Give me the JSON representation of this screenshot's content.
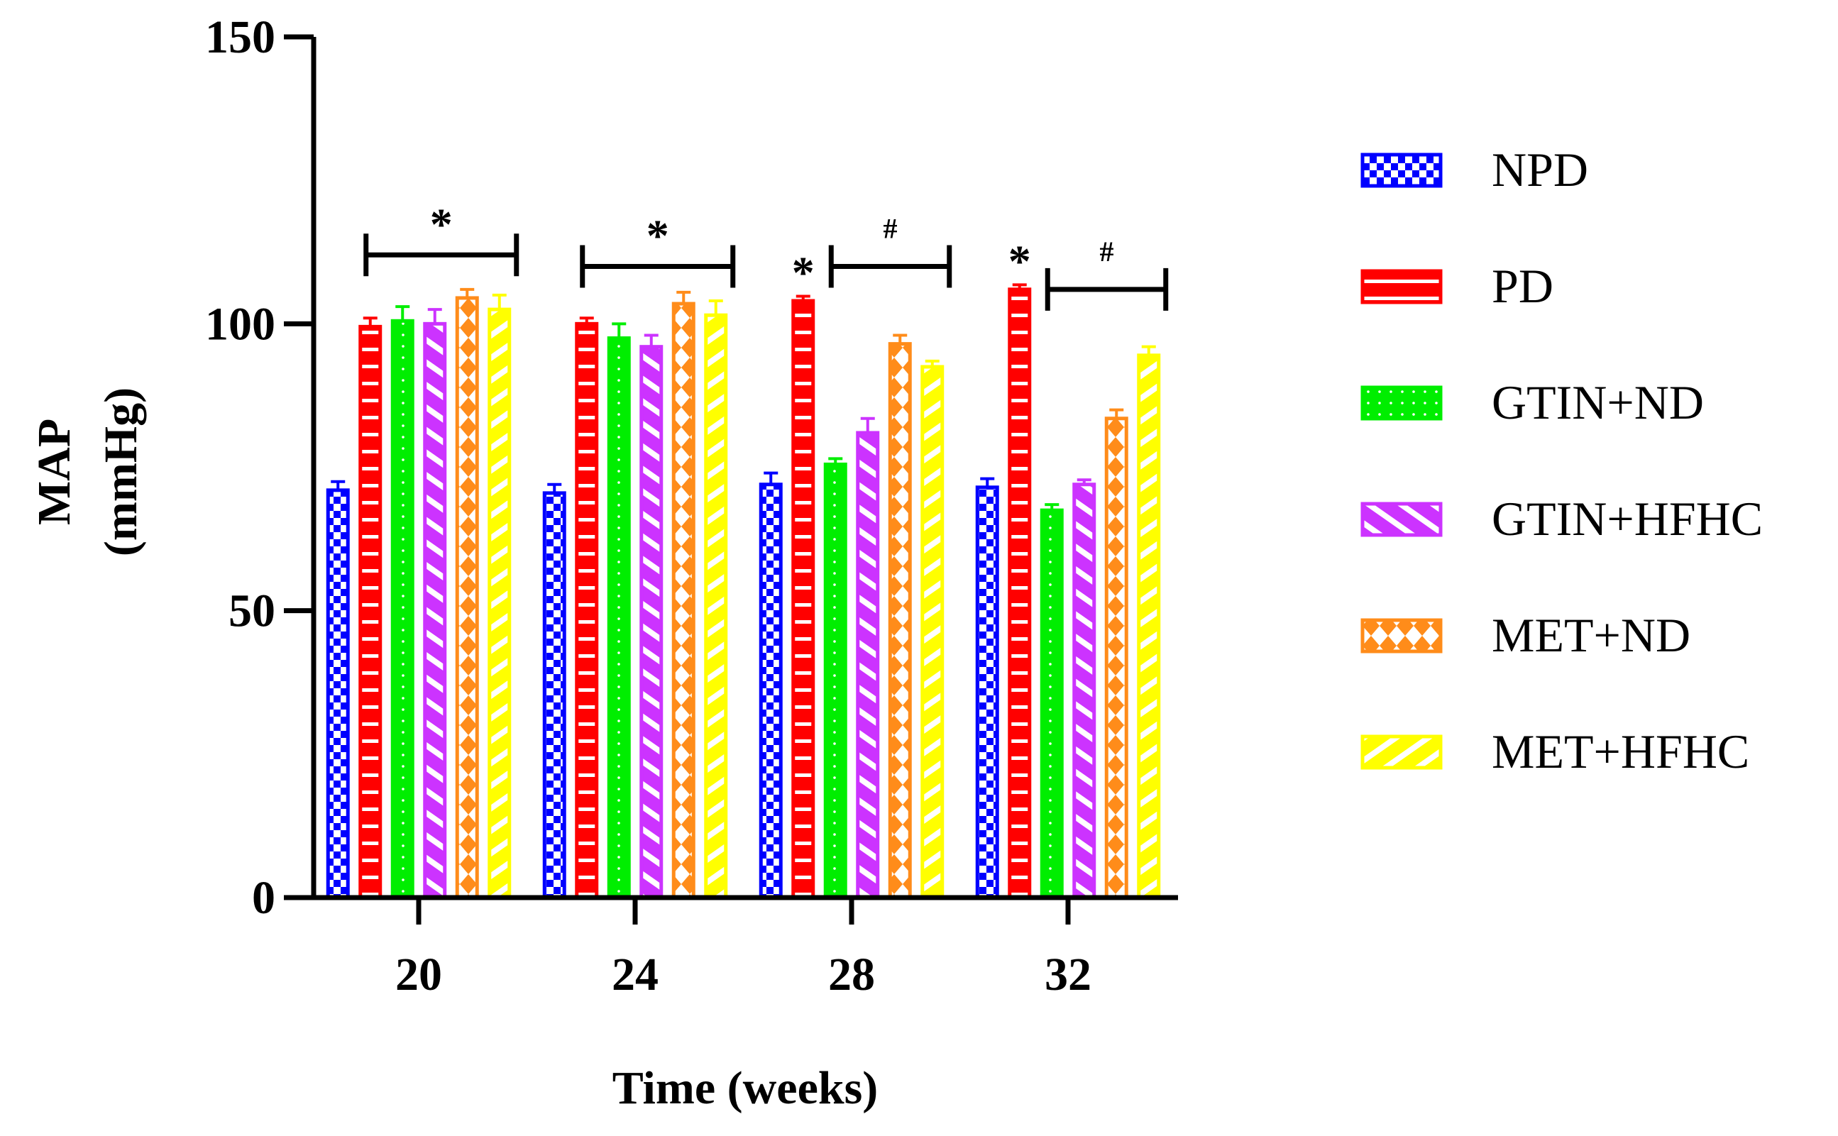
{
  "chart_data": {
    "type": "bar",
    "title": "",
    "xlabel": "Time (weeks)",
    "ylabel_line1": "MAP",
    "ylabel_line2": "(mmHg)",
    "ylim": [
      0,
      150
    ],
    "yticks": [
      0,
      50,
      100,
      150
    ],
    "categories": [
      "20",
      "24",
      "28",
      "32"
    ],
    "series": [
      {
        "name": "NPD",
        "color": "#0000ff",
        "pattern": "checker",
        "values": [
          71,
          70.5,
          72,
          71.5
        ],
        "errors": [
          1.5,
          1.5,
          2,
          1.5
        ]
      },
      {
        "name": "PD",
        "color": "#ff0000",
        "pattern": "hlines",
        "values": [
          99.5,
          100,
          104,
          106
        ],
        "errors": [
          1.5,
          1,
          0.8,
          0.8
        ]
      },
      {
        "name": "GTIN+ND",
        "color": "#00ee00",
        "pattern": "dots",
        "values": [
          100.5,
          97.5,
          75.5,
          67.5
        ],
        "errors": [
          2.5,
          2.5,
          1,
          1
        ]
      },
      {
        "name": "GTIN+HFHC",
        "color": "#cc33ff",
        "pattern": "diag",
        "values": [
          100,
          96,
          81,
          72
        ],
        "errors": [
          2.5,
          2,
          2.5,
          0.8
        ]
      },
      {
        "name": "MET+ND",
        "color": "#ff8c1a",
        "pattern": "diamond",
        "values": [
          104.5,
          103.5,
          96.5,
          83.5
        ],
        "errors": [
          1.5,
          2,
          1.5,
          1.5
        ]
      },
      {
        "name": "MET+HFHC",
        "color": "#ffff00",
        "pattern": "backdiag",
        "values": [
          102.5,
          101.5,
          92.5,
          94.5
        ],
        "errors": [
          2.5,
          2.5,
          1,
          1.5
        ]
      }
    ],
    "annotations": [
      {
        "symbol": "*",
        "group": "20",
        "type": "bracket",
        "from_series": 1,
        "to_series": 5,
        "level": 112
      },
      {
        "symbol": "*",
        "group": "24",
        "type": "bracket",
        "from_series": 1,
        "to_series": 5,
        "level": 110
      },
      {
        "symbol": "*",
        "group": "28",
        "type": "single",
        "series": 1
      },
      {
        "symbol": "#",
        "group": "28",
        "type": "bracket",
        "from_series": 2,
        "to_series": 5,
        "level": 110
      },
      {
        "symbol": "*",
        "group": "32",
        "type": "single",
        "series": 1
      },
      {
        "symbol": "#",
        "group": "32",
        "type": "bracket",
        "from_series": 2,
        "to_series": 5,
        "level": 106
      }
    ],
    "legend_position": "right"
  }
}
